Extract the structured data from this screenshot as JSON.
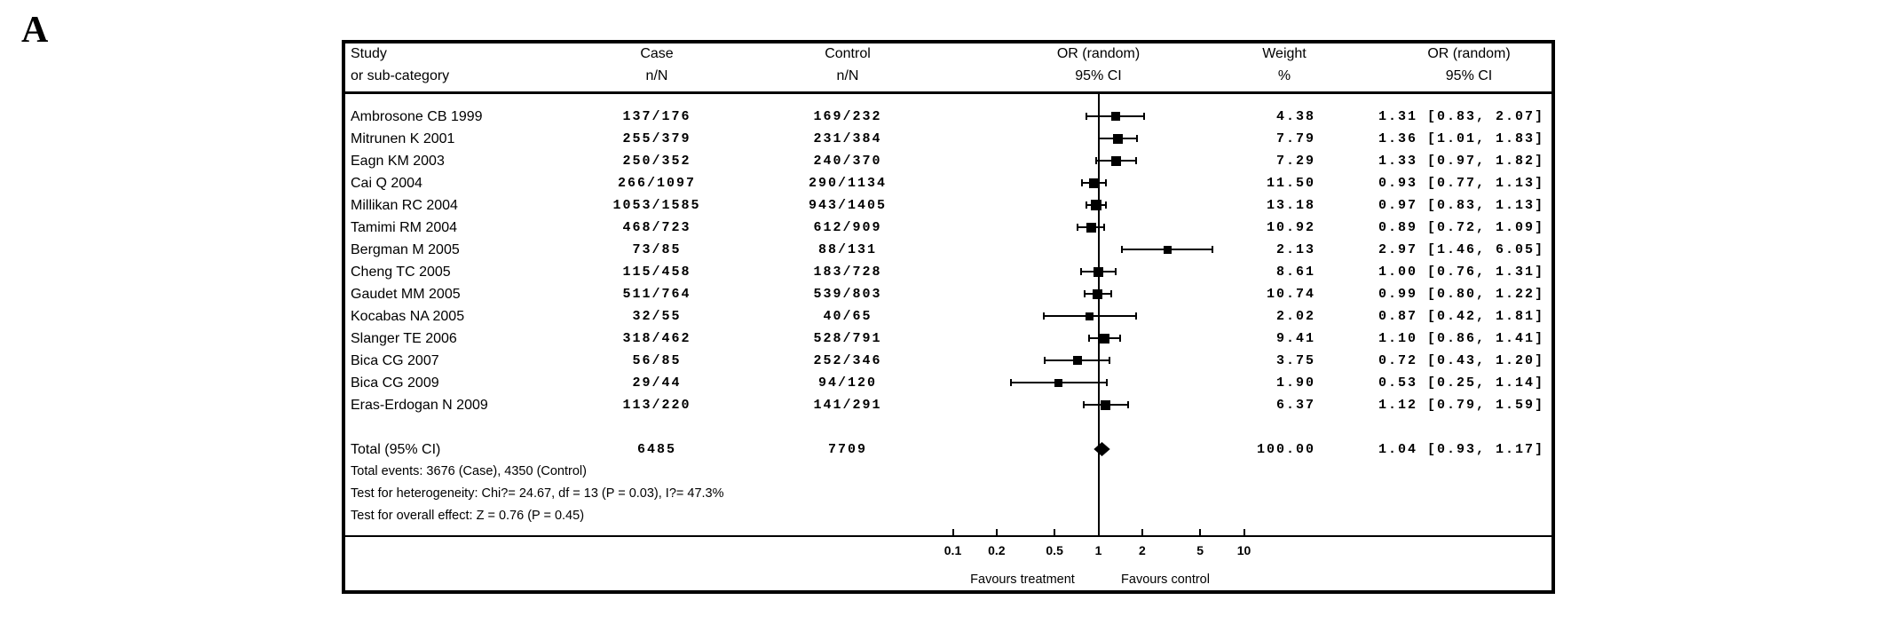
{
  "panel_label": "A",
  "colors": {
    "ink": "#000000",
    "background": "#ffffff"
  },
  "chart_data": {
    "type": "forest",
    "effect_measure": "OR (random)",
    "scale": "log10",
    "columns": [
      {
        "l1": "Study",
        "l2": "or sub-category"
      },
      {
        "l1": "Case",
        "l2": "n/N"
      },
      {
        "l1": "Control",
        "l2": "n/N"
      },
      {
        "l1": "OR (random)",
        "l2": "95% CI"
      },
      {
        "l1": "Weight",
        "l2": "%"
      },
      {
        "l1": "OR (random)",
        "l2": "95% CI"
      }
    ],
    "studies": [
      {
        "name": "Ambrosone CB 1999",
        "case": "137/176",
        "control": "169/232",
        "weight": "4.38",
        "or_text": "1.31 [0.83, 2.07]",
        "or": 1.31,
        "lo": 0.83,
        "hi": 2.07,
        "w": 4.38
      },
      {
        "name": "Mitrunen K 2001",
        "case": "255/379",
        "control": "231/384",
        "weight": "7.79",
        "or_text": "1.36 [1.01, 1.83]",
        "or": 1.36,
        "lo": 1.01,
        "hi": 1.83,
        "w": 7.79
      },
      {
        "name": "Eagn KM 2003",
        "case": "250/352",
        "control": "240/370",
        "weight": "7.29",
        "or_text": "1.33 [0.97, 1.82]",
        "or": 1.33,
        "lo": 0.97,
        "hi": 1.82,
        "w": 7.29
      },
      {
        "name": "Cai Q 2004",
        "case": "266/1097",
        "control": "290/1134",
        "weight": "11.50",
        "or_text": "0.93 [0.77, 1.13]",
        "or": 0.93,
        "lo": 0.77,
        "hi": 1.13,
        "w": 11.5
      },
      {
        "name": "Millikan RC 2004",
        "case": "1053/1585",
        "control": "943/1405",
        "weight": "13.18",
        "or_text": "0.97 [0.83, 1.13]",
        "or": 0.97,
        "lo": 0.83,
        "hi": 1.13,
        "w": 13.18
      },
      {
        "name": "Tamimi RM 2004",
        "case": "468/723",
        "control": "612/909",
        "weight": "10.92",
        "or_text": "0.89 [0.72, 1.09]",
        "or": 0.89,
        "lo": 0.72,
        "hi": 1.09,
        "w": 10.92
      },
      {
        "name": "Bergman M 2005",
        "case": "73/85",
        "control": "88/131",
        "weight": "2.13",
        "or_text": "2.97 [1.46, 6.05]",
        "or": 2.97,
        "lo": 1.46,
        "hi": 6.05,
        "w": 2.13
      },
      {
        "name": "Cheng TC 2005",
        "case": "115/458",
        "control": "183/728",
        "weight": "8.61",
        "or_text": "1.00 [0.76, 1.31]",
        "or": 1.0,
        "lo": 0.76,
        "hi": 1.31,
        "w": 8.61
      },
      {
        "name": "Gaudet MM 2005",
        "case": "511/764",
        "control": "539/803",
        "weight": "10.74",
        "or_text": "0.99 [0.80, 1.22]",
        "or": 0.99,
        "lo": 0.8,
        "hi": 1.22,
        "w": 10.74
      },
      {
        "name": "Kocabas NA 2005",
        "case": "32/55",
        "control": "40/65",
        "weight": "2.02",
        "or_text": "0.87 [0.42, 1.81]",
        "or": 0.87,
        "lo": 0.42,
        "hi": 1.81,
        "w": 2.02
      },
      {
        "name": "Slanger TE 2006",
        "case": "318/462",
        "control": "528/791",
        "weight": "9.41",
        "or_text": "1.10 [0.86, 1.41]",
        "or": 1.1,
        "lo": 0.86,
        "hi": 1.41,
        "w": 9.41
      },
      {
        "name": "Bica CG 2007",
        "case": "56/85",
        "control": "252/346",
        "weight": "3.75",
        "or_text": "0.72 [0.43, 1.20]",
        "or": 0.72,
        "lo": 0.43,
        "hi": 1.2,
        "w": 3.75
      },
      {
        "name": "Bica CG 2009",
        "case": "29/44",
        "control": "94/120",
        "weight": "1.90",
        "or_text": "0.53 [0.25, 1.14]",
        "or": 0.53,
        "lo": 0.25,
        "hi": 1.14,
        "w": 1.9
      },
      {
        "name": "Eras-Erdogan N 2009",
        "case": "113/220",
        "control": "141/291",
        "weight": "6.37",
        "or_text": "1.12 [0.79, 1.59]",
        "or": 1.12,
        "lo": 0.79,
        "hi": 1.59,
        "w": 6.37
      }
    ],
    "total": {
      "label": "Total (95% CI)",
      "case": "6485",
      "control": "7709",
      "weight": "100.00",
      "or_text": "1.04 [0.93, 1.17]",
      "or": 1.04,
      "lo": 0.93,
      "hi": 1.17
    },
    "footnotes": [
      "Total events: 3676 (Case), 4350 (Control)",
      "Test for heterogeneity: Chi?= 24.67, df = 13 (P = 0.03), I?= 47.3%",
      "Test for overall effect: Z = 0.76 (P = 0.45)"
    ],
    "axis": {
      "tick_labels": [
        "0.1",
        "0.2",
        "0.5",
        "1",
        "2",
        "5",
        "10"
      ],
      "tick_values": [
        0.1,
        0.2,
        0.5,
        1,
        2,
        5,
        10
      ],
      "favours_left": "Favours treatment",
      "favours_right": "Favours control"
    }
  }
}
